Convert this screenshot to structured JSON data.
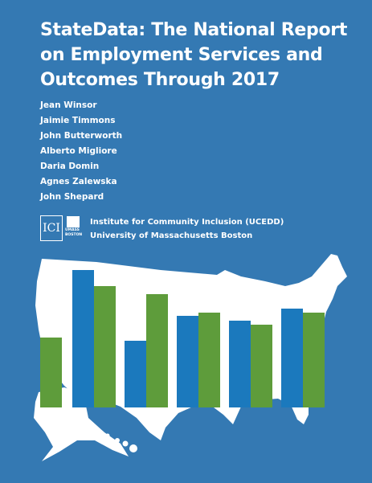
{
  "header": {
    "title_lines": [
      "StateData: The National Report",
      "on Employment Services and",
      "Outcomes Through 2017"
    ]
  },
  "authors": [
    "Jean Winsor",
    "Jaimie Timmons",
    "John Butterworth",
    "Alberto Migliore",
    "Daria Domin",
    "Agnes Zalewska",
    "John Shepard"
  ],
  "logo": {
    "ici": "ICI",
    "umass": "UMASS BOSTON"
  },
  "institution": [
    "Institute for Community Inclusion (UCEDD)",
    "University of Massachusetts Boston"
  ]
}
